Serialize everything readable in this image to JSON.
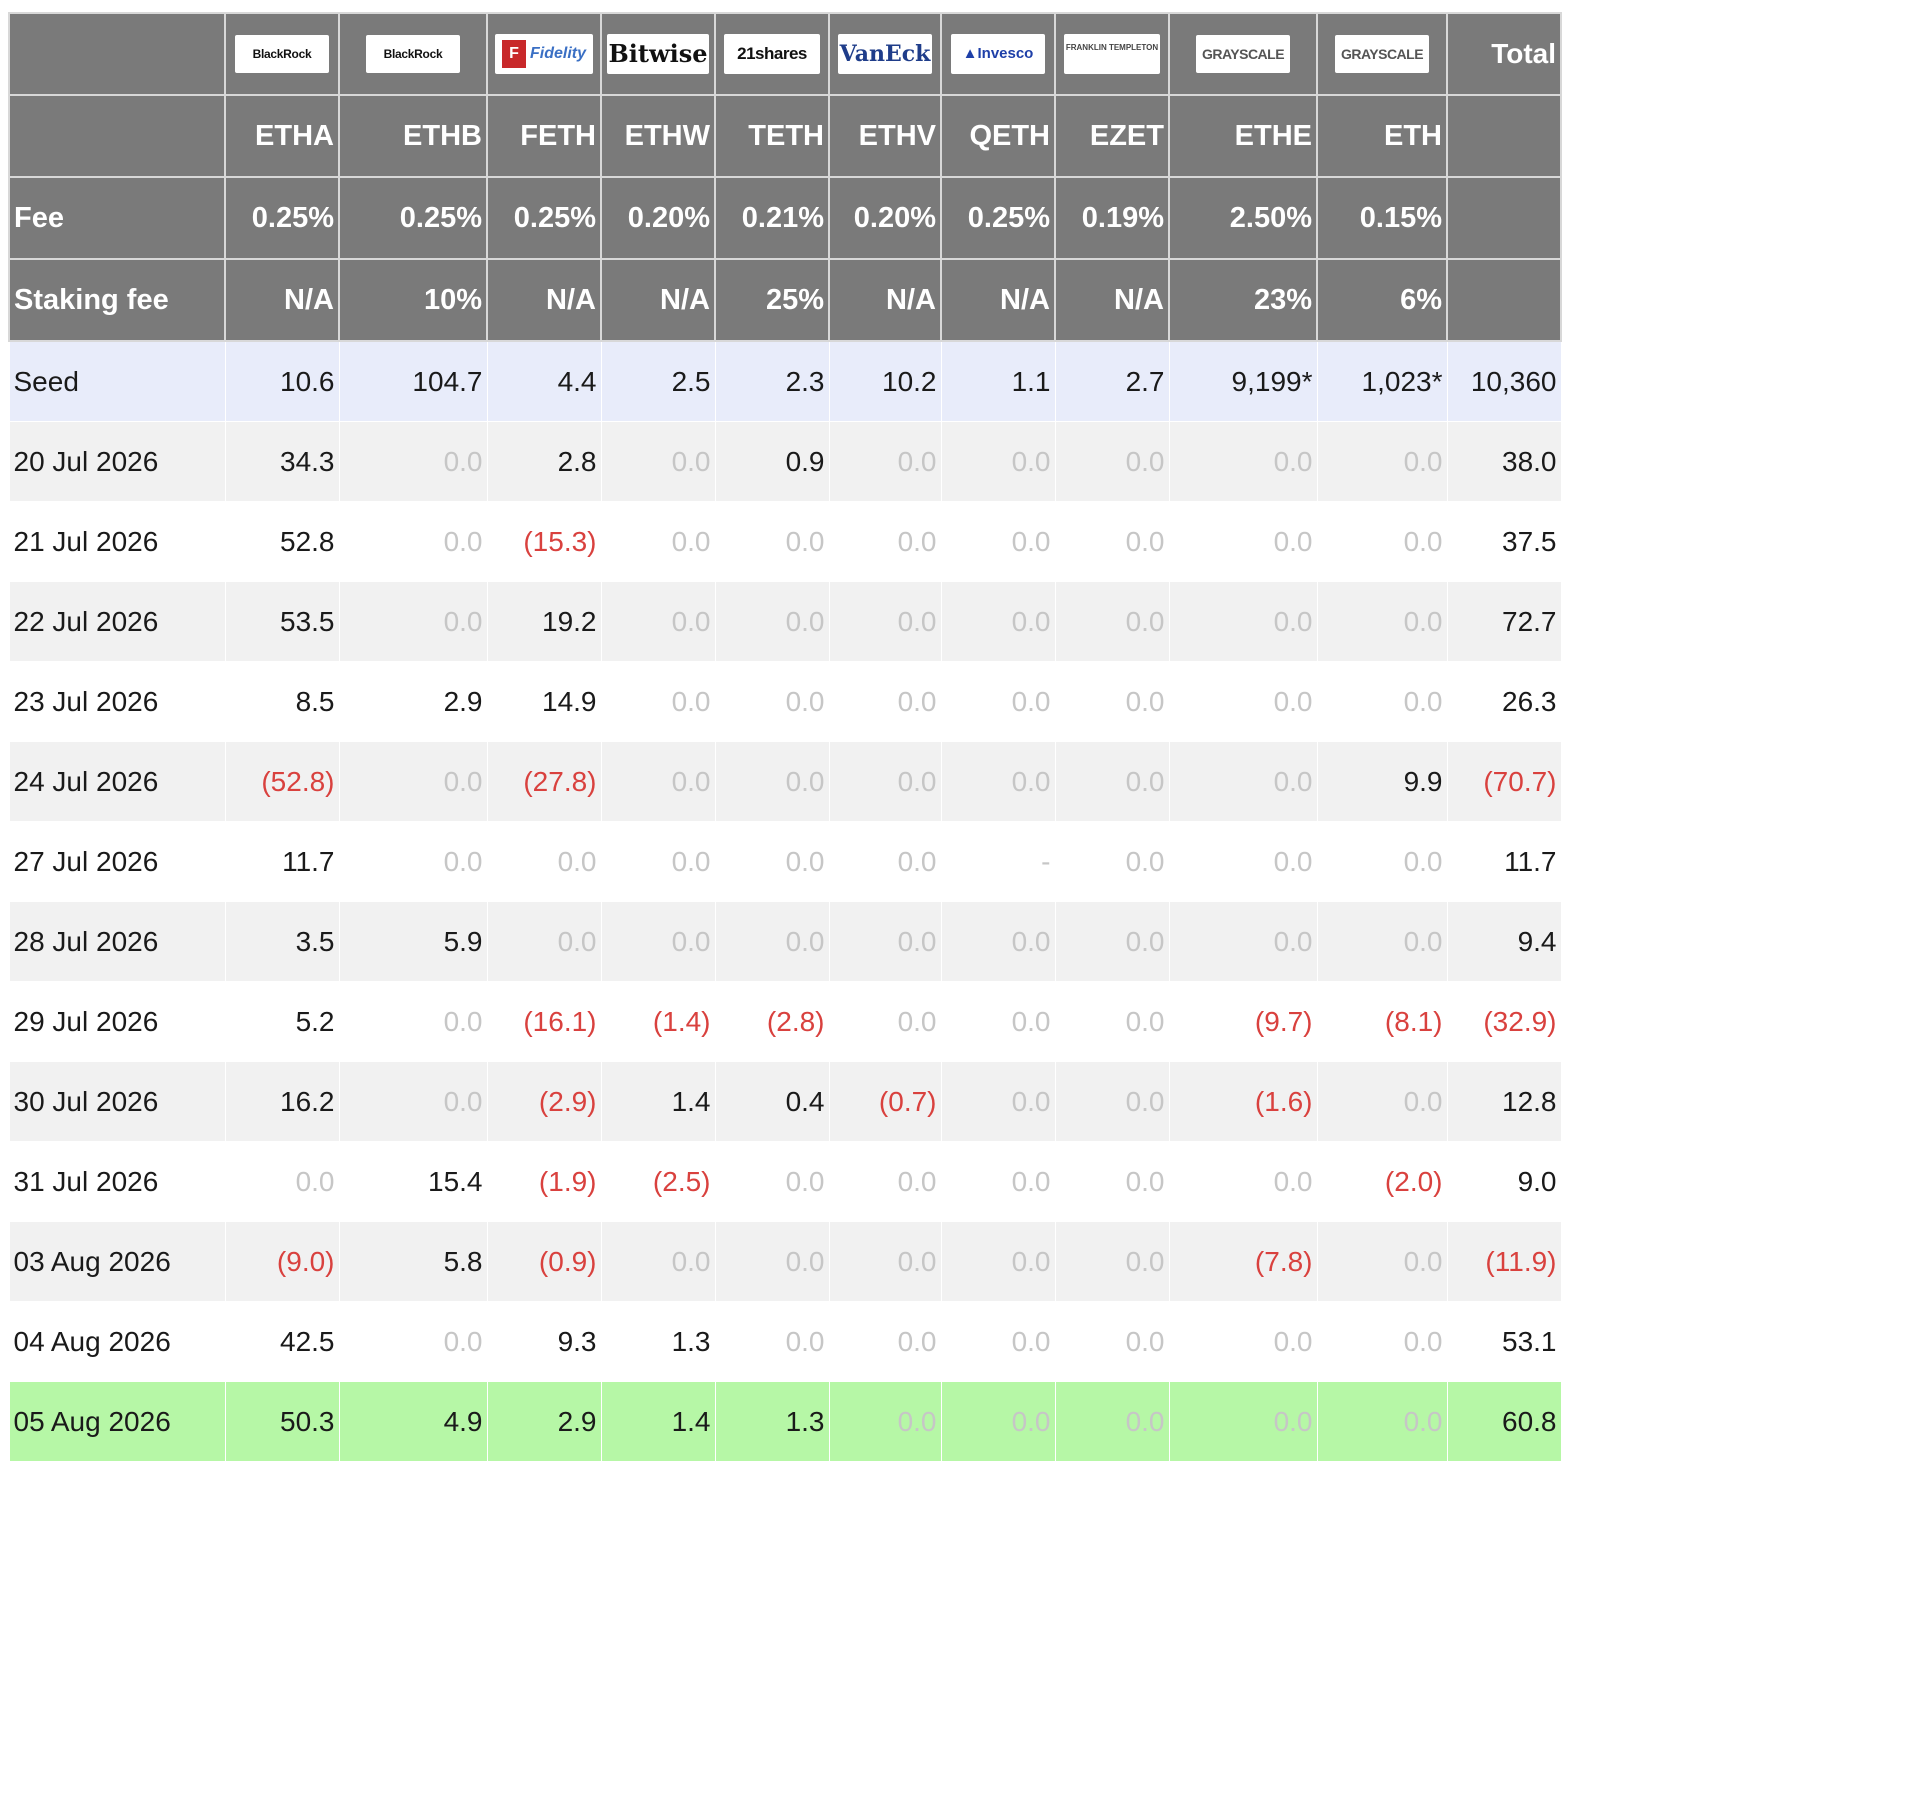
{
  "header": {
    "total_label": "Total",
    "logos": [
      {
        "text": "BlackRock",
        "icon": "blackrock-logo"
      },
      {
        "text": "BlackRock",
        "icon": "blackrock-logo"
      },
      {
        "text": "Fidelity",
        "icon": "fidelity-logo"
      },
      {
        "text": "Bitwise",
        "icon": "bitwise-logo"
      },
      {
        "text": "21shares",
        "icon": "21shares-logo"
      },
      {
        "text": "VanEck",
        "icon": "vaneck-logo"
      },
      {
        "text": "Invesco",
        "icon": "invesco-logo"
      },
      {
        "text": "FRANKLIN TEMPLETON",
        "icon": "franklin-templeton-logo"
      },
      {
        "text": "GRAYSCALE",
        "icon": "grayscale-logo"
      },
      {
        "text": "GRAYSCALE",
        "icon": "grayscale-logo"
      }
    ],
    "tickers": [
      "ETHA",
      "ETHB",
      "FETH",
      "ETHW",
      "TETH",
      "ETHV",
      "QETH",
      "EZET",
      "ETHE",
      "ETH"
    ],
    "fee_label": "Fee",
    "fees": [
      "0.25%",
      "0.25%",
      "0.25%",
      "0.20%",
      "0.21%",
      "0.20%",
      "0.25%",
      "0.19%",
      "2.50%",
      "0.15%"
    ],
    "staking_label": "Staking fee",
    "staking_fees": [
      "N/A",
      "10%",
      "N/A",
      "N/A",
      "25%",
      "N/A",
      "N/A",
      "N/A",
      "23%",
      "6%"
    ]
  },
  "rows": [
    {
      "date": "Seed",
      "values": [
        "10.6",
        "104.7",
        "4.4",
        "2.5",
        "2.3",
        "10.2",
        "1.1",
        "2.7",
        "9,199*",
        "1,023*",
        "10,360"
      ]
    },
    {
      "date": "20 Jul 2026",
      "values": [
        "34.3",
        "0.0",
        "2.8",
        "0.0",
        "0.9",
        "0.0",
        "0.0",
        "0.0",
        "0.0",
        "0.0",
        "38.0"
      ]
    },
    {
      "date": "21 Jul 2026",
      "values": [
        "52.8",
        "0.0",
        "(15.3)",
        "0.0",
        "0.0",
        "0.0",
        "0.0",
        "0.0",
        "0.0",
        "0.0",
        "37.5"
      ]
    },
    {
      "date": "22 Jul 2026",
      "values": [
        "53.5",
        "0.0",
        "19.2",
        "0.0",
        "0.0",
        "0.0",
        "0.0",
        "0.0",
        "0.0",
        "0.0",
        "72.7"
      ]
    },
    {
      "date": "23 Jul 2026",
      "values": [
        "8.5",
        "2.9",
        "14.9",
        "0.0",
        "0.0",
        "0.0",
        "0.0",
        "0.0",
        "0.0",
        "0.0",
        "26.3"
      ]
    },
    {
      "date": "24 Jul 2026",
      "values": [
        "(52.8)",
        "0.0",
        "(27.8)",
        "0.0",
        "0.0",
        "0.0",
        "0.0",
        "0.0",
        "0.0",
        "9.9",
        "(70.7)"
      ]
    },
    {
      "date": "27 Jul 2026",
      "values": [
        "11.7",
        "0.0",
        "0.0",
        "0.0",
        "0.0",
        "0.0",
        "-",
        "0.0",
        "0.0",
        "0.0",
        "11.7"
      ]
    },
    {
      "date": "28 Jul 2026",
      "values": [
        "3.5",
        "5.9",
        "0.0",
        "0.0",
        "0.0",
        "0.0",
        "0.0",
        "0.0",
        "0.0",
        "0.0",
        "9.4"
      ]
    },
    {
      "date": "29 Jul 2026",
      "values": [
        "5.2",
        "0.0",
        "(16.1)",
        "(1.4)",
        "(2.8)",
        "0.0",
        "0.0",
        "0.0",
        "(9.7)",
        "(8.1)",
        "(32.9)"
      ]
    },
    {
      "date": "30 Jul 2026",
      "values": [
        "16.2",
        "0.0",
        "(2.9)",
        "1.4",
        "0.4",
        "(0.7)",
        "0.0",
        "0.0",
        "(1.6)",
        "0.0",
        "12.8"
      ]
    },
    {
      "date": "31 Jul 2026",
      "values": [
        "0.0",
        "15.4",
        "(1.9)",
        "(2.5)",
        "0.0",
        "0.0",
        "0.0",
        "0.0",
        "0.0",
        "(2.0)",
        "9.0"
      ]
    },
    {
      "date": "03 Aug 2026",
      "values": [
        "(9.0)",
        "5.8",
        "(0.9)",
        "0.0",
        "0.0",
        "0.0",
        "0.0",
        "0.0",
        "(7.8)",
        "0.0",
        "(11.9)"
      ]
    },
    {
      "date": "04 Aug 2026",
      "values": [
        "42.5",
        "0.0",
        "9.3",
        "1.3",
        "0.0",
        "0.0",
        "0.0",
        "0.0",
        "0.0",
        "0.0",
        "53.1"
      ]
    },
    {
      "date": "05 Aug 2026",
      "values": [
        "50.3",
        "4.9",
        "2.9",
        "1.4",
        "1.3",
        "0.0",
        "0.0",
        "0.0",
        "0.0",
        "0.0",
        "60.8"
      ]
    }
  ],
  "colors": {
    "header_bg": "#7a7a7a",
    "seed_bg": "#e8ecfa",
    "highlight_bg": "#b6f7a6",
    "negative": "#d9413e",
    "zero": "#c6c6c6",
    "zebra": "#f1f1f1"
  }
}
